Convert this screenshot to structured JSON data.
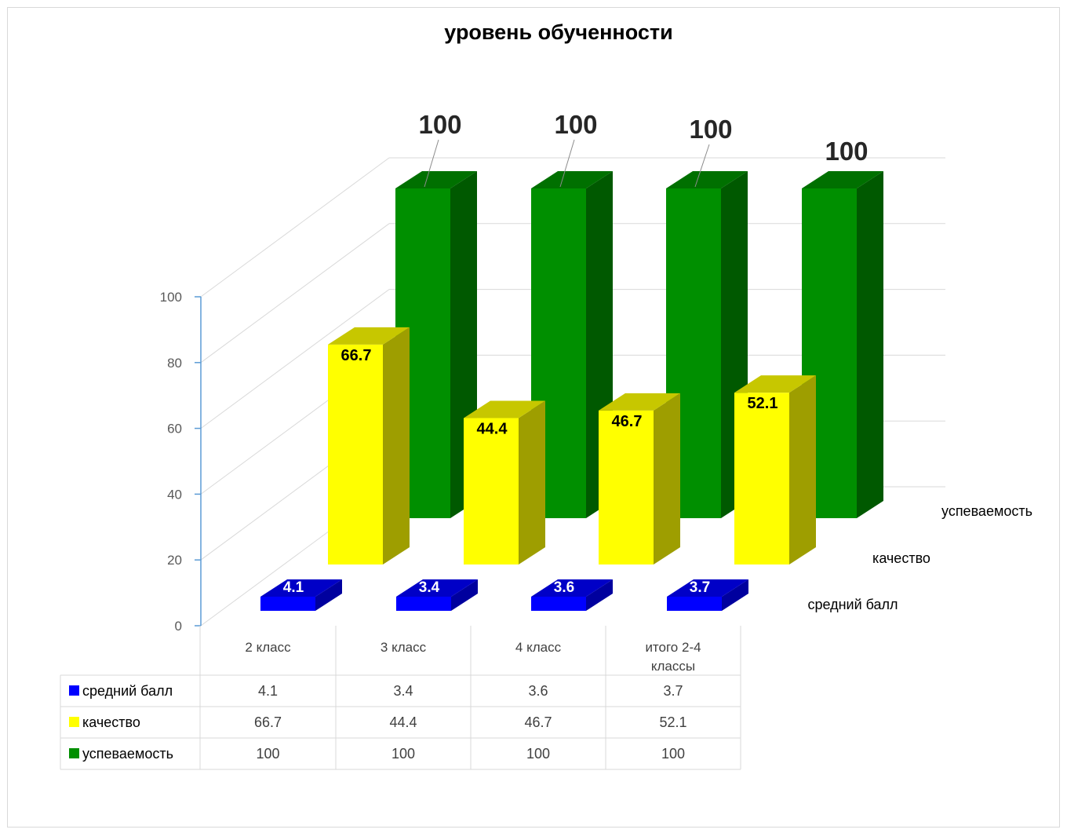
{
  "chart_data": {
    "type": "bar",
    "title": "уровень обученности",
    "categories": [
      "2 класс",
      "3 класс",
      "4 класс",
      "итого 2-4 классы"
    ],
    "category_lines": [
      [
        "2 класс"
      ],
      [
        "3 класс"
      ],
      [
        "4 класс"
      ],
      [
        "итого 2-4",
        "классы"
      ]
    ],
    "ylim": [
      0,
      100
    ],
    "yticks": [
      "0",
      "20",
      "40",
      "60",
      "80",
      "100"
    ],
    "three_d": true,
    "series": [
      {
        "name": "средний балл",
        "color": "#0000ff",
        "values": [
          4.1,
          3.4,
          3.6,
          3.7
        ],
        "labels": [
          "4.1",
          "3.4",
          "3.6",
          "3.7"
        ]
      },
      {
        "name": "качество",
        "color": "#ffff00",
        "values": [
          66.7,
          44.4,
          46.7,
          52.1
        ],
        "labels": [
          "66.7",
          "44.4",
          "46.7",
          "52.1"
        ]
      },
      {
        "name": "успеваемость",
        "color": "#008f00",
        "values": [
          100,
          100,
          100,
          100
        ],
        "labels": [
          "100",
          "100",
          "100",
          "100"
        ]
      }
    ],
    "data_table": {
      "rows": [
        {
          "label": "средний балл",
          "cells": [
            "4.1",
            "3.4",
            "3.6",
            "3.7"
          ]
        },
        {
          "label": "качество",
          "cells": [
            "66.7",
            "44.4",
            "46.7",
            "52.1"
          ]
        },
        {
          "label": "успеваемость",
          "cells": [
            "100",
            "100",
            "100",
            "100"
          ]
        }
      ]
    }
  }
}
